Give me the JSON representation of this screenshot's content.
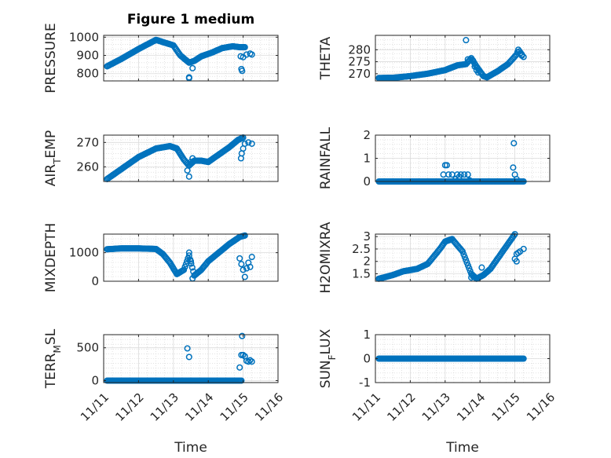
{
  "figure": {
    "title": "Figure 1 medium",
    "marker_color": "#0072BD",
    "axis_color": "#262626"
  },
  "chart_data": [
    {
      "type": "scatter",
      "ylabel": "PRESSURE",
      "ylim": [
        760,
        1010
      ],
      "yticks": [
        800,
        900,
        1000
      ],
      "ytick_labels": [
        "800",
        "900",
        "1000"
      ],
      "xlim": [
        0,
        5
      ],
      "xticks": [
        0,
        1,
        2,
        3,
        4,
        5
      ],
      "xtick_labels": [
        "11/11",
        "11/12",
        "11/13",
        "11/14",
        "11/15",
        "11/16"
      ],
      "xlabel": "",
      "grid": true,
      "anchors": [
        [
          0.1,
          840
        ],
        [
          0.5,
          880
        ],
        [
          1.0,
          935
        ],
        [
          1.5,
          985
        ],
        [
          2.0,
          955
        ],
        [
          2.2,
          900
        ],
        [
          2.45,
          860
        ],
        [
          2.6,
          870
        ],
        [
          2.8,
          895
        ],
        [
          3.1,
          915
        ],
        [
          3.4,
          940
        ],
        [
          3.7,
          950
        ],
        [
          3.9,
          945
        ],
        [
          4.05,
          945
        ]
      ],
      "extra": [
        [
          2.45,
          780
        ],
        [
          2.45,
          775
        ],
        [
          2.55,
          830
        ],
        [
          3.93,
          895
        ],
        [
          3.95,
          825
        ],
        [
          3.97,
          815
        ],
        [
          4.0,
          890
        ],
        [
          4.1,
          905
        ],
        [
          4.2,
          910
        ],
        [
          4.25,
          905
        ]
      ],
      "gap": [
        4.05,
        3.92
      ]
    },
    {
      "type": "scatter",
      "ylabel": "THETA",
      "ylim": [
        267,
        286
      ],
      "yticks": [
        270,
        275,
        280
      ],
      "ytick_labels": [
        "270",
        "275",
        "280"
      ],
      "xlim": [
        0,
        5
      ],
      "xticks": [
        0,
        1,
        2,
        3,
        4,
        5
      ],
      "xtick_labels": [
        "11/11",
        "11/12",
        "11/13",
        "11/14",
        "11/15",
        "11/16"
      ],
      "xlabel": "",
      "grid": true,
      "anchors": [
        [
          0.1,
          268.2
        ],
        [
          0.5,
          268.3
        ],
        [
          1.0,
          269.0
        ],
        [
          1.5,
          270.0
        ],
        [
          2.0,
          271.5
        ],
        [
          2.35,
          273.5
        ],
        [
          2.6,
          274.0
        ],
        [
          2.75,
          276.5
        ],
        [
          2.9,
          273
        ],
        [
          3.1,
          269
        ],
        [
          3.2,
          268.5
        ],
        [
          3.5,
          271
        ],
        [
          3.8,
          274
        ],
        [
          4.05,
          278
        ],
        [
          4.1,
          280
        ],
        [
          4.2,
          278
        ]
      ],
      "extra": [
        [
          2.6,
          284.0
        ],
        [
          2.65,
          276.0
        ],
        [
          2.8,
          275.5
        ],
        [
          2.85,
          273
        ],
        [
          2.9,
          271.5
        ],
        [
          2.95,
          270.5
        ],
        [
          4.15,
          278.5
        ],
        [
          4.2,
          277.5
        ],
        [
          4.25,
          277
        ]
      ],
      "gap": [
        4.3,
        4.2
      ]
    },
    {
      "type": "scatter",
      "ylabel": "AIR_TEMP",
      "ylabel_main": "AIR",
      "ylabel_sub": "T",
      "ylabel_rest": "EMP",
      "ylim": [
        254,
        273
      ],
      "yticks": [
        260,
        270
      ],
      "ytick_labels": [
        "260",
        "270"
      ],
      "xlim": [
        0,
        5
      ],
      "xticks": [
        0,
        1,
        2,
        3,
        4,
        5
      ],
      "xtick_labels": [
        "11/11",
        "11/12",
        "11/13",
        "11/14",
        "11/15",
        "11/16"
      ],
      "xlabel": "",
      "grid": true,
      "anchors": [
        [
          0.1,
          255
        ],
        [
          0.5,
          259
        ],
        [
          1.0,
          264
        ],
        [
          1.5,
          267.5
        ],
        [
          1.9,
          268.5
        ],
        [
          2.1,
          267.5
        ],
        [
          2.3,
          263
        ],
        [
          2.45,
          260.5
        ],
        [
          2.6,
          262.5
        ],
        [
          2.8,
          262.5
        ],
        [
          3.0,
          262
        ],
        [
          3.2,
          264
        ],
        [
          3.6,
          268
        ],
        [
          3.85,
          271
        ],
        [
          4.0,
          272
        ]
      ],
      "extra": [
        [
          2.4,
          258.5
        ],
        [
          2.45,
          256.0
        ],
        [
          2.5,
          262
        ],
        [
          2.55,
          263.5
        ],
        [
          3.94,
          263.5
        ],
        [
          3.96,
          265.5
        ],
        [
          4.0,
          267.5
        ],
        [
          4.05,
          269.5
        ],
        [
          4.15,
          270
        ],
        [
          4.25,
          269.5
        ]
      ],
      "gap": [
        4.3,
        4.2
      ]
    },
    {
      "type": "scatter",
      "ylabel": "RAINFALL",
      "ylim": [
        0,
        2
      ],
      "yticks": [
        0,
        1,
        2
      ],
      "ytick_labels": [
        "0",
        "1",
        "2"
      ],
      "xlim": [
        0,
        5
      ],
      "xticks": [
        0,
        1,
        2,
        3,
        4,
        5
      ],
      "xtick_labels": [
        "11/11",
        "11/12",
        "11/13",
        "11/14",
        "11/15",
        "11/16"
      ],
      "xlabel": "",
      "grid": true,
      "anchors": [
        [
          0.1,
          0
        ],
        [
          4.25,
          0
        ]
      ],
      "extra": [
        [
          1.95,
          0.3
        ],
        [
          2.0,
          0.7
        ],
        [
          2.05,
          0.7
        ],
        [
          2.1,
          0.3
        ],
        [
          2.2,
          0.3
        ],
        [
          2.3,
          0.1
        ],
        [
          2.35,
          0.3
        ],
        [
          2.4,
          0.2
        ],
        [
          2.45,
          0.3
        ],
        [
          2.55,
          0.3
        ],
        [
          2.65,
          0.3
        ],
        [
          2.7,
          0.05
        ],
        [
          3.95,
          0.6
        ],
        [
          3.97,
          1.65
        ],
        [
          4.0,
          0.3
        ],
        [
          4.05,
          0.1
        ]
      ],
      "gap": [
        4.3,
        4.2
      ]
    },
    {
      "type": "scatter",
      "ylabel": "MIXDEPTH",
      "ylim": [
        0,
        1650
      ],
      "yticks": [
        0,
        1000
      ],
      "ytick_labels": [
        "0",
        "1000"
      ],
      "xlim": [
        0,
        5
      ],
      "xticks": [
        0,
        1,
        2,
        3,
        4,
        5
      ],
      "xtick_labels": [
        "11/11",
        "11/12",
        "11/13",
        "11/14",
        "11/15",
        "11/16"
      ],
      "xlabel": "",
      "grid": true,
      "anchors": [
        [
          0.1,
          1120
        ],
        [
          0.5,
          1150
        ],
        [
          1.0,
          1150
        ],
        [
          1.5,
          1130
        ],
        [
          1.7,
          950
        ],
        [
          1.9,
          650
        ],
        [
          2.1,
          250
        ],
        [
          2.3,
          400
        ],
        [
          2.45,
          900
        ],
        [
          2.6,
          200
        ],
        [
          2.8,
          400
        ],
        [
          3.0,
          700
        ],
        [
          3.3,
          1000
        ],
        [
          3.6,
          1300
        ],
        [
          3.9,
          1550
        ],
        [
          4.05,
          1600
        ]
      ],
      "extra": [
        [
          2.45,
          1000
        ],
        [
          2.5,
          700
        ],
        [
          2.55,
          100
        ],
        [
          3.9,
          800
        ],
        [
          3.95,
          600
        ],
        [
          4.0,
          400
        ],
        [
          4.05,
          150
        ],
        [
          4.1,
          450
        ],
        [
          4.15,
          650
        ],
        [
          4.2,
          500
        ],
        [
          4.25,
          850
        ]
      ],
      "gap": [
        4.05,
        3.92
      ]
    },
    {
      "type": "scatter",
      "ylabel": "H2OMIXRA",
      "ylim": [
        1.2,
        3.1
      ],
      "yticks": [
        1.5,
        2,
        2.5,
        3
      ],
      "ytick_labels": [
        "1.5",
        "2",
        "2.5",
        "3"
      ],
      "xlim": [
        0,
        5
      ],
      "xticks": [
        0,
        1,
        2,
        3,
        4,
        5
      ],
      "xtick_labels": [
        "11/11",
        "11/12",
        "11/13",
        "11/14",
        "11/15",
        "11/16"
      ],
      "xlabel": "",
      "grid": true,
      "anchors": [
        [
          0.1,
          1.3
        ],
        [
          0.5,
          1.45
        ],
        [
          0.8,
          1.6
        ],
        [
          1.2,
          1.7
        ],
        [
          1.5,
          1.9
        ],
        [
          1.85,
          2.5
        ],
        [
          2.0,
          2.8
        ],
        [
          2.2,
          2.9
        ],
        [
          2.5,
          2.4
        ],
        [
          2.75,
          1.5
        ],
        [
          2.9,
          1.3
        ],
        [
          3.1,
          1.45
        ],
        [
          3.3,
          1.7
        ],
        [
          3.6,
          2.3
        ],
        [
          3.85,
          2.8
        ],
        [
          4.0,
          3.1
        ]
      ],
      "extra": [
        [
          2.75,
          1.35
        ],
        [
          2.8,
          1.4
        ],
        [
          3.05,
          1.75
        ],
        [
          4.0,
          2.1
        ],
        [
          4.05,
          2.3
        ],
        [
          4.1,
          2.35
        ],
        [
          4.15,
          2.4
        ],
        [
          4.25,
          2.5
        ],
        [
          4.05,
          2.0
        ]
      ],
      "gap": [
        4.05,
        3.95
      ]
    },
    {
      "type": "scatter",
      "ylabel": "TERR_MSL",
      "ylabel_main": "TERR",
      "ylabel_sub": "M",
      "ylabel_rest": "SL",
      "ylim": [
        -30,
        700
      ],
      "yticks": [
        0,
        500
      ],
      "ytick_labels": [
        "0",
        "500"
      ],
      "xlim": [
        0,
        5
      ],
      "xticks": [
        0,
        1,
        2,
        3,
        4,
        5
      ],
      "xtick_labels": [
        "11/11",
        "11/12",
        "11/13",
        "11/14",
        "11/15",
        "11/16"
      ],
      "xlabel": "Time",
      "grid": true,
      "anchors": [
        [
          0.1,
          0
        ],
        [
          3.95,
          0
        ]
      ],
      "extra": [
        [
          2.4,
          490
        ],
        [
          2.45,
          360
        ],
        [
          2.5,
          0
        ],
        [
          3.9,
          200
        ],
        [
          3.95,
          390
        ],
        [
          3.97,
          680
        ],
        [
          4.0,
          390
        ],
        [
          4.05,
          370
        ],
        [
          4.1,
          300
        ],
        [
          4.15,
          290
        ],
        [
          4.2,
          310
        ],
        [
          4.25,
          290
        ]
      ],
      "gap": [
        4.3,
        4.2
      ]
    },
    {
      "type": "scatter",
      "ylabel": "SUN_FLUX",
      "ylabel_main": "SUN",
      "ylabel_sub": "F",
      "ylabel_rest": "LUX",
      "ylim": [
        -1,
        1
      ],
      "yticks": [
        -1,
        0,
        1
      ],
      "ytick_labels": [
        "-1",
        "0",
        "1"
      ],
      "xlim": [
        0,
        5
      ],
      "xticks": [
        0,
        1,
        2,
        3,
        4,
        5
      ],
      "xtick_labels": [
        "11/11",
        "11/12",
        "11/13",
        "11/14",
        "11/15",
        "11/16"
      ],
      "xlabel": "Time",
      "grid": true,
      "anchors": [
        [
          0.1,
          0
        ],
        [
          4.25,
          0
        ]
      ],
      "extra": [],
      "gap": [
        4.3,
        4.2
      ]
    }
  ]
}
